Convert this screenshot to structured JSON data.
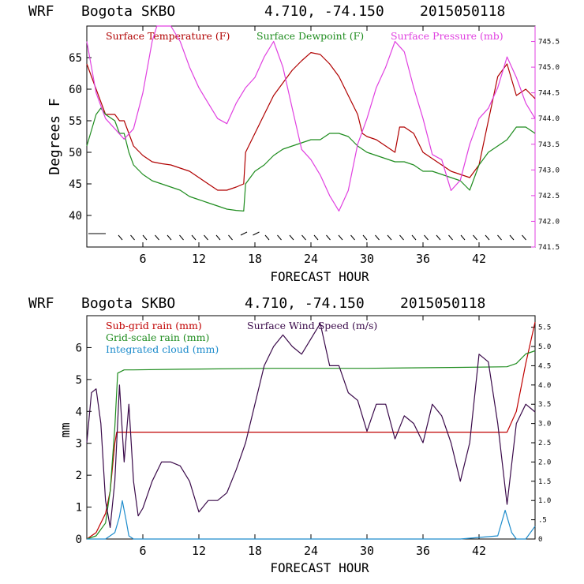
{
  "colors": {
    "axis": "#000000",
    "temperature": "#b00000",
    "dewpoint": "#1e8c1e",
    "pressure": "#e040e0",
    "subgrid": "#c00000",
    "gridscale": "#1e8c1e",
    "cloud": "#1e8ccc",
    "wind": "#3a0a4a"
  },
  "chart_data": [
    {
      "type": "line",
      "title_parts": [
        "WRF",
        "Bogota SKBO",
        "4.710, -74.150",
        "2015050118"
      ],
      "xlabel": "FORECAST HOUR",
      "ylabel": "Degrees F",
      "xlim": [
        0,
        48
      ],
      "ylim": [
        35,
        70
      ],
      "y2lim": [
        741.5,
        745.8
      ],
      "xticks": [
        6,
        12,
        18,
        24,
        30,
        36,
        42
      ],
      "yticks": [
        40,
        45,
        50,
        55,
        60,
        65
      ],
      "y2ticks": [
        "741.5",
        "742.0",
        "742.5",
        "743.0",
        "743.5",
        "744.0",
        "744.5",
        "745.0",
        "745.5"
      ],
      "legend": [
        "Surface Temperature (F)",
        "Surface Dewpoint (F)",
        "Surface Pressure (mb)"
      ],
      "series": [
        {
          "name": "Surface Temperature (F)",
          "axis": "left",
          "x": [
            0,
            1,
            2,
            3,
            3.5,
            4,
            5,
            6,
            7,
            8,
            9,
            10,
            11,
            12,
            13,
            14,
            15,
            16,
            16.8,
            17,
            18,
            19,
            20,
            21,
            22,
            23,
            24,
            25,
            26,
            27,
            28,
            29,
            29.5,
            30,
            31,
            32,
            33,
            33.5,
            34,
            35,
            36,
            37,
            38,
            39,
            40,
            41,
            42,
            43,
            44,
            45,
            46,
            47,
            48
          ],
          "values": [
            64,
            60,
            56,
            56,
            55,
            55,
            51,
            49.5,
            48.5,
            48.2,
            48,
            47.5,
            47,
            46,
            45,
            44,
            44,
            44.5,
            45,
            50,
            53,
            56,
            59,
            61,
            63,
            64.5,
            65.8,
            65.5,
            64,
            62,
            59,
            56,
            53,
            52.5,
            52,
            51,
            50,
            54,
            54,
            53,
            50,
            49,
            48,
            47,
            46.5,
            46,
            48,
            55,
            62,
            64,
            59,
            60,
            58.5
          ]
        },
        {
          "name": "Surface Dewpoint (F)",
          "axis": "left",
          "x": [
            0,
            1,
            1.5,
            2,
            3,
            3.5,
            4,
            4.5,
            5,
            6,
            7,
            8,
            9,
            10,
            11,
            12,
            13,
            14,
            15,
            16,
            16.8,
            17,
            18,
            19,
            20,
            21,
            22,
            23,
            24,
            25,
            26,
            27,
            28,
            29,
            30,
            31,
            32,
            33,
            34,
            35,
            36,
            37,
            38,
            39,
            40,
            41,
            42,
            43,
            44,
            45,
            46,
            47,
            48
          ],
          "values": [
            51,
            56,
            57,
            56,
            55,
            53,
            53,
            50,
            48,
            46.5,
            45.5,
            45,
            44.5,
            44,
            43,
            42.5,
            42,
            41.5,
            41,
            40.8,
            40.7,
            45,
            47,
            48,
            49.5,
            50.5,
            51,
            51.5,
            52,
            52,
            53,
            53,
            52.5,
            51,
            50,
            49.5,
            49,
            48.5,
            48.5,
            48,
            47,
            47,
            46.5,
            46,
            45.5,
            44,
            48,
            50,
            51,
            52,
            54,
            54,
            53
          ]
        },
        {
          "name": "Surface Pressure (mb)",
          "axis": "right",
          "x": [
            0,
            1,
            2,
            3,
            4,
            5,
            6,
            7,
            7.5,
            8,
            9,
            10,
            11,
            12,
            13,
            14,
            15,
            16,
            17,
            18,
            19,
            20,
            21,
            22,
            23,
            24,
            25,
            26,
            27,
            28,
            29,
            30,
            31,
            32,
            33,
            34,
            35,
            36,
            37,
            38,
            39,
            40,
            41,
            42,
            43,
            44,
            45,
            46,
            47,
            48
          ],
          "values": [
            745.5,
            744.5,
            744.0,
            743.8,
            743.6,
            743.8,
            744.5,
            745.5,
            745.8,
            745.8,
            745.8,
            745.5,
            745.0,
            744.6,
            744.3,
            744.0,
            743.9,
            744.3,
            744.6,
            744.8,
            745.2,
            745.5,
            745.0,
            744.2,
            743.4,
            743.2,
            742.9,
            742.5,
            742.2,
            742.6,
            743.5,
            744.0,
            744.6,
            745.0,
            745.5,
            745.3,
            744.6,
            744.0,
            743.3,
            743.2,
            742.6,
            742.8,
            743.5,
            744.0,
            744.2,
            744.6,
            745.2,
            744.8,
            744.3,
            744.0
          ]
        }
      ]
    },
    {
      "type": "line",
      "title_parts": [
        "WRF",
        "Bogota SKBO",
        "4.710, -74.150",
        "2015050118"
      ],
      "xlabel": "FORECAST HOUR",
      "ylabel": "mm",
      "xlim": [
        0,
        48
      ],
      "ylim": [
        0,
        7
      ],
      "y2lim": [
        0,
        5.8
      ],
      "xticks": [
        6,
        12,
        18,
        24,
        30,
        36,
        42
      ],
      "yticks": [
        0,
        1,
        2,
        3,
        4,
        5,
        6
      ],
      "y2ticks": [
        "0",
        ".5",
        "1.0",
        "1.5",
        "2.0",
        "2.5",
        "3.0",
        "3.5",
        "4.0",
        "4.5",
        "5.0",
        "5.5"
      ],
      "legend": [
        "Sub-grid rain (mm)",
        "Grid-scale rain (mm)",
        "Integrated cloud (mm)",
        "Surface Wind Speed (m/s)"
      ],
      "series": [
        {
          "name": "Sub-grid rain (mm)",
          "axis": "left",
          "x": [
            0,
            1,
            2,
            2.5,
            3,
            3.2,
            4,
            10,
            20,
            30,
            40,
            45,
            46,
            47,
            48
          ],
          "values": [
            0,
            0.2,
            0.8,
            1.5,
            3.0,
            3.35,
            3.35,
            3.35,
            3.35,
            3.35,
            3.35,
            3.35,
            4.0,
            5.5,
            6.8
          ]
        },
        {
          "name": "Grid-scale rain (mm)",
          "axis": "left",
          "x": [
            0,
            1,
            2,
            2.5,
            3,
            3.3,
            4,
            5,
            10,
            20,
            30,
            40,
            45,
            46,
            47,
            48
          ],
          "values": [
            0,
            0.1,
            0.5,
            1.5,
            3.5,
            5.2,
            5.3,
            5.3,
            5.32,
            5.35,
            5.35,
            5.38,
            5.4,
            5.5,
            5.8,
            5.9
          ]
        },
        {
          "name": "Integrated cloud (mm)",
          "axis": "left",
          "x": [
            0,
            2,
            3,
            3.5,
            3.8,
            4.2,
            4.5,
            5,
            6,
            10,
            20,
            30,
            40,
            44,
            44.8,
            45.5,
            46,
            47,
            48
          ],
          "values": [
            0,
            0,
            0.2,
            0.7,
            1.2,
            0.6,
            0.1,
            0,
            0,
            0,
            0,
            0,
            0,
            0.1,
            0.9,
            0.2,
            0,
            0,
            0.4
          ]
        },
        {
          "name": "Surface Wind Speed (m/s)",
          "axis": "right",
          "x": [
            0,
            0.5,
            1,
            1.5,
            2,
            2.5,
            3,
            3.5,
            4,
            4.5,
            5,
            5.5,
            6,
            7,
            8,
            9,
            10,
            11,
            12,
            13,
            14,
            15,
            16,
            17,
            18,
            19,
            20,
            21,
            22,
            23,
            24,
            25,
            26,
            27,
            28,
            29,
            30,
            31,
            32,
            33,
            34,
            35,
            36,
            37,
            38,
            39,
            40,
            41,
            42,
            43,
            44,
            45,
            46,
            47,
            48
          ],
          "values": [
            2.5,
            3.8,
            3.9,
            3.0,
            1.0,
            0.3,
            1.5,
            4.0,
            2.0,
            3.5,
            1.5,
            0.6,
            0.8,
            1.5,
            2.0,
            2.0,
            1.9,
            1.5,
            0.7,
            1.0,
            1.0,
            1.2,
            1.8,
            2.5,
            3.5,
            4.5,
            5.0,
            5.3,
            5.0,
            4.8,
            5.2,
            5.6,
            4.5,
            4.5,
            3.8,
            3.6,
            2.8,
            3.5,
            3.5,
            2.6,
            3.2,
            3.0,
            2.5,
            3.5,
            3.2,
            2.5,
            1.5,
            2.5,
            4.8,
            4.6,
            3.0,
            0.9,
            3.0,
            3.5,
            3.3
          ]
        }
      ]
    }
  ]
}
